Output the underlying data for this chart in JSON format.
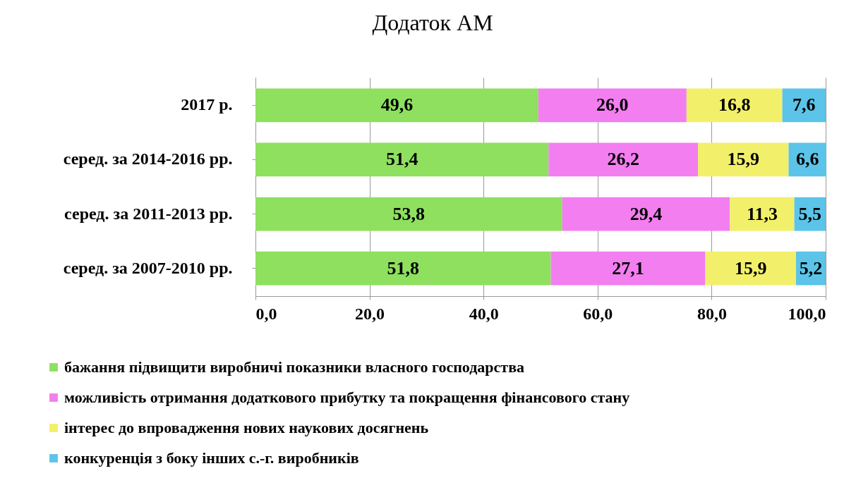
{
  "chart_data": {
    "type": "bar",
    "orientation": "horizontal",
    "stacked": true,
    "title": "Додаток АМ",
    "categories": [
      "2017 р.",
      "серед. за 2014-2016 рр.",
      "серед. за 2011-2013 рр.",
      "серед. за 2007-2010 рр."
    ],
    "series": [
      {
        "name": "бажання підвищити виробничі  показники власного господарства",
        "color": "#8ee05e",
        "values": [
          49.6,
          51.4,
          53.8,
          51.8
        ],
        "value_labels": [
          "49,6",
          "51,4",
          "53,8",
          "51,8"
        ]
      },
      {
        "name": "можливість отримання додаткового прибутку та покращення фінансового стану",
        "color": "#f27ef0",
        "values": [
          26.0,
          26.2,
          29.4,
          27.1
        ],
        "value_labels": [
          "26,0",
          "26,2",
          "29,4",
          "27,1"
        ]
      },
      {
        "name": "інтерес до впровадження нових наукових досягнень",
        "color": "#f2f06a",
        "values": [
          16.8,
          15.9,
          11.3,
          15.9
        ],
        "value_labels": [
          "16,8",
          "15,9",
          "11,3",
          "15,9"
        ]
      },
      {
        "name": "конкуренція з боку інших с.-г. виробників",
        "color": "#5bc4e8",
        "values": [
          7.6,
          6.6,
          5.5,
          5.2
        ],
        "value_labels": [
          "7,6",
          "6,6",
          "5,5",
          "5,2"
        ]
      }
    ],
    "xlim": [
      0,
      100
    ],
    "xticks": [
      {
        "value": 0,
        "label": "0,0"
      },
      {
        "value": 20,
        "label": "20,0"
      },
      {
        "value": 40,
        "label": "40,0"
      },
      {
        "value": 60,
        "label": "60,0"
      },
      {
        "value": 80,
        "label": "80,0"
      },
      {
        "value": 100,
        "label": "100,0"
      }
    ],
    "grid": "x",
    "legend": "bottom"
  }
}
